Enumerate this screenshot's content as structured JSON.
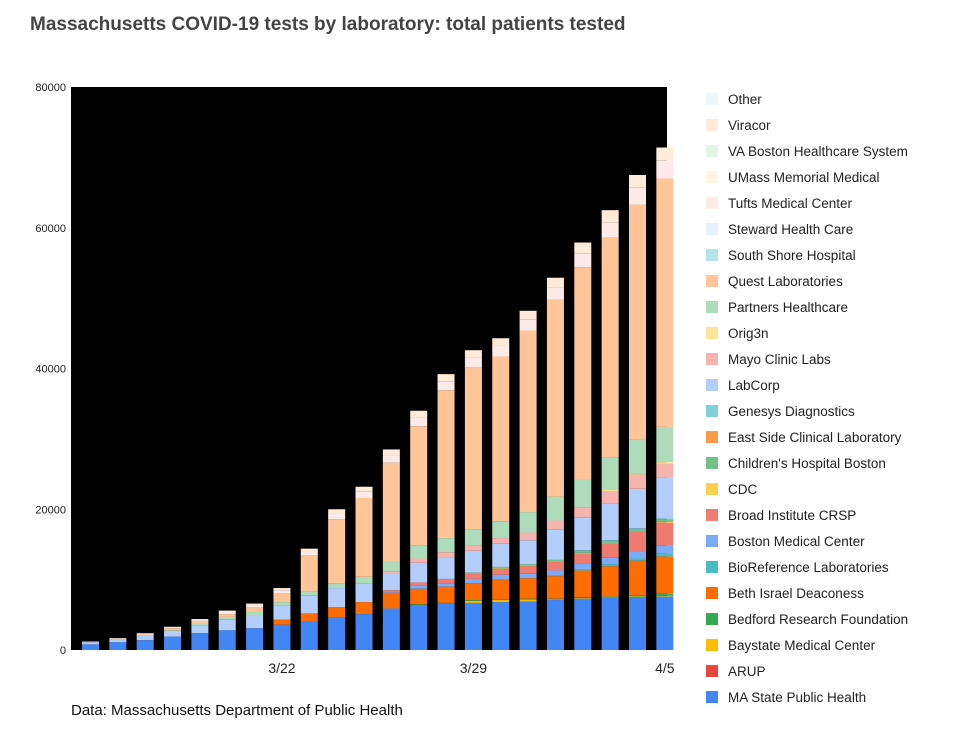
{
  "title": "Massachusetts COVID-19 tests by laboratory: total patients tested",
  "source": "Data: Massachusetts Department of Public Health",
  "chart_data": {
    "type": "bar",
    "stacked": true,
    "title": "Massachusetts COVID-19 tests by laboratory: total patients tested",
    "xlabel": "",
    "ylabel": "",
    "ylim": [
      0,
      80000
    ],
    "yticks": [
      0,
      20000,
      40000,
      60000,
      80000
    ],
    "x_tick_labels": [
      {
        "index": 7,
        "label": "3/22"
      },
      {
        "index": 14,
        "label": "3/29"
      },
      {
        "index": 21,
        "label": "4/5"
      }
    ],
    "grid": false,
    "plot_background": "#000000",
    "legend_position": "right",
    "categories": [
      "3/15",
      "3/16",
      "3/17",
      "3/18",
      "3/19",
      "3/20",
      "3/21",
      "3/22",
      "3/23",
      "3/24",
      "3/25",
      "3/26",
      "3/27",
      "3/28",
      "3/29",
      "3/30",
      "3/31",
      "4/1",
      "4/2",
      "4/3",
      "4/4",
      "4/5"
    ],
    "series": [
      {
        "name": "MA State Public Health",
        "color": "#4285f4",
        "values": [
          800,
          1100,
          1400,
          1900,
          2400,
          2800,
          3100,
          3600,
          4000,
          4600,
          5100,
          5900,
          6400,
          6600,
          6700,
          6800,
          6900,
          7100,
          7300,
          7400,
          7500,
          7600
        ]
      },
      {
        "name": "ARUP",
        "color": "#e8453c",
        "values": [
          0,
          0,
          0,
          0,
          0,
          0,
          0,
          0,
          0,
          0,
          0,
          0,
          0,
          0,
          0,
          0,
          0,
          0,
          0,
          0,
          0,
          0
        ]
      },
      {
        "name": "Baystate Medical Center",
        "color": "#fbbc04",
        "values": [
          0,
          0,
          0,
          0,
          0,
          0,
          0,
          0,
          0,
          0,
          0,
          0,
          0,
          0,
          300,
          300,
          300,
          100,
          100,
          100,
          100,
          100
        ]
      },
      {
        "name": "Bedford Research Foundation",
        "color": "#34a853",
        "values": [
          0,
          0,
          0,
          0,
          0,
          0,
          0,
          0,
          0,
          0,
          0,
          0,
          100,
          100,
          100,
          100,
          100,
          100,
          100,
          100,
          200,
          300
        ]
      },
      {
        "name": "Beth Israel Deaconess",
        "color": "#ff6d01",
        "values": [
          0,
          0,
          0,
          0,
          0,
          0,
          0,
          700,
          1200,
          1500,
          1700,
          2100,
          2200,
          2300,
          2400,
          2800,
          2900,
          3200,
          3800,
          4300,
          4900,
          5300
        ]
      },
      {
        "name": "BioReference Laboratories",
        "color": "#46bdc6",
        "values": [
          0,
          0,
          0,
          0,
          0,
          0,
          0,
          0,
          0,
          0,
          0,
          0,
          0,
          0,
          0,
          0,
          0,
          100,
          200,
          300,
          300,
          400
        ]
      },
      {
        "name": "Boston Medical Center",
        "color": "#7baaf7",
        "values": [
          0,
          0,
          0,
          0,
          0,
          0,
          0,
          0,
          0,
          0,
          0,
          200,
          400,
          500,
          600,
          700,
          700,
          700,
          800,
          900,
          1000,
          1100
        ]
      },
      {
        "name": "Broad Institute CRSP",
        "color": "#f07b72",
        "values": [
          0,
          0,
          0,
          0,
          0,
          0,
          0,
          0,
          0,
          0,
          0,
          300,
          500,
          600,
          700,
          800,
          1000,
          1200,
          1400,
          2000,
          2800,
          3300
        ]
      },
      {
        "name": "CDC",
        "color": "#fcd04f",
        "values": [
          0,
          0,
          0,
          0,
          0,
          0,
          0,
          0,
          0,
          0,
          0,
          0,
          0,
          0,
          100,
          100,
          100,
          100,
          100,
          100,
          100,
          100
        ]
      },
      {
        "name": "Children's Hospital Boston",
        "color": "#71c287",
        "values": [
          0,
          0,
          0,
          0,
          0,
          0,
          0,
          0,
          0,
          0,
          0,
          0,
          0,
          0,
          100,
          200,
          200,
          200,
          300,
          300,
          300,
          400
        ]
      },
      {
        "name": "East Side Clinical Laboratory",
        "color": "#ff994d",
        "values": [
          0,
          0,
          0,
          0,
          0,
          0,
          0,
          0,
          0,
          0,
          0,
          0,
          0,
          0,
          0,
          0,
          0,
          0,
          0,
          0,
          0,
          0
        ]
      },
      {
        "name": "Genesys Diagnostics",
        "color": "#7ed1d7",
        "values": [
          0,
          0,
          0,
          0,
          0,
          0,
          0,
          0,
          0,
          0,
          0,
          0,
          0,
          0,
          0,
          0,
          0,
          0,
          100,
          100,
          100,
          100
        ]
      },
      {
        "name": "LabCorp",
        "color": "#b3cefb",
        "values": [
          300,
          400,
          600,
          800,
          1100,
          1500,
          1800,
          2000,
          2500,
          2700,
          2600,
          2300,
          2800,
          3100,
          3100,
          3300,
          3400,
          4300,
          4600,
          5200,
          5600,
          5800
        ]
      },
      {
        "name": "Mayo Clinic Labs",
        "color": "#f7b4ae",
        "values": [
          0,
          0,
          0,
          0,
          0,
          0,
          0,
          0,
          0,
          0,
          0,
          300,
          600,
          700,
          800,
          800,
          1100,
          1300,
          1500,
          1800,
          2000,
          2000
        ]
      },
      {
        "name": "Orig3n",
        "color": "#fde49b",
        "values": [
          0,
          0,
          0,
          0,
          0,
          0,
          0,
          0,
          0,
          0,
          0,
          0,
          0,
          0,
          0,
          0,
          0,
          0,
          0,
          200,
          200,
          200
        ]
      },
      {
        "name": "Partners Healthcare",
        "color": "#aedcba",
        "values": [
          0,
          0,
          0,
          100,
          200,
          400,
          500,
          500,
          600,
          700,
          1000,
          1400,
          1800,
          2000,
          2200,
          2400,
          2900,
          3400,
          4000,
          4500,
          4800,
          5000
        ]
      },
      {
        "name": "Quest Laboratories",
        "color": "#ffc599",
        "values": [
          0,
          100,
          200,
          300,
          300,
          400,
          600,
          1200,
          5100,
          9100,
          11200,
          14100,
          17000,
          21000,
          23000,
          23400,
          25800,
          28000,
          30100,
          31300,
          33400,
          35300
        ]
      },
      {
        "name": "South Shore Hospital",
        "color": "#b2e4e8",
        "values": [
          0,
          0,
          0,
          0,
          0,
          0,
          0,
          0,
          0,
          0,
          0,
          0,
          0,
          0,
          0,
          0,
          0,
          0,
          0,
          0,
          0,
          0
        ]
      },
      {
        "name": "Steward Health Care",
        "color": "#e8f0fe",
        "values": [
          0,
          0,
          0,
          0,
          0,
          0,
          0,
          0,
          0,
          0,
          0,
          0,
          0,
          0,
          0,
          0,
          0,
          0,
          0,
          0,
          0,
          0
        ]
      },
      {
        "name": "Tufts Medical Center",
        "color": "#fde9e7",
        "values": [
          0,
          0,
          100,
          100,
          200,
          300,
          400,
          500,
          600,
          800,
          900,
          1100,
          1300,
          1300,
          1400,
          1500,
          1600,
          1700,
          1900,
          2100,
          2400,
          2600
        ]
      },
      {
        "name": "UMass Memorial Medical",
        "color": "#fef6e0",
        "values": [
          0,
          0,
          0,
          0,
          0,
          0,
          0,
          0,
          0,
          0,
          0,
          0,
          0,
          0,
          0,
          0,
          0,
          0,
          0,
          0,
          0,
          0
        ]
      },
      {
        "name": "VA Boston Healthcare System",
        "color": "#e6f4ea",
        "values": [
          0,
          0,
          0,
          0,
          0,
          0,
          0,
          0,
          0,
          0,
          0,
          0,
          0,
          0,
          0,
          0,
          0,
          0,
          0,
          0,
          0,
          0
        ]
      },
      {
        "name": "Viracor",
        "color": "#ffe9d9",
        "values": [
          100,
          100,
          100,
          100,
          200,
          200,
          200,
          300,
          400,
          600,
          700,
          800,
          900,
          1000,
          1100,
          1100,
          1200,
          1400,
          1600,
          1800,
          1800,
          1800
        ]
      },
      {
        "name": "Other",
        "color": "#ecf8f9",
        "values": [
          0,
          0,
          0,
          0,
          0,
          0,
          0,
          0,
          0,
          0,
          0,
          0,
          0,
          0,
          0,
          0,
          0,
          0,
          0,
          0,
          0,
          0
        ]
      }
    ]
  }
}
